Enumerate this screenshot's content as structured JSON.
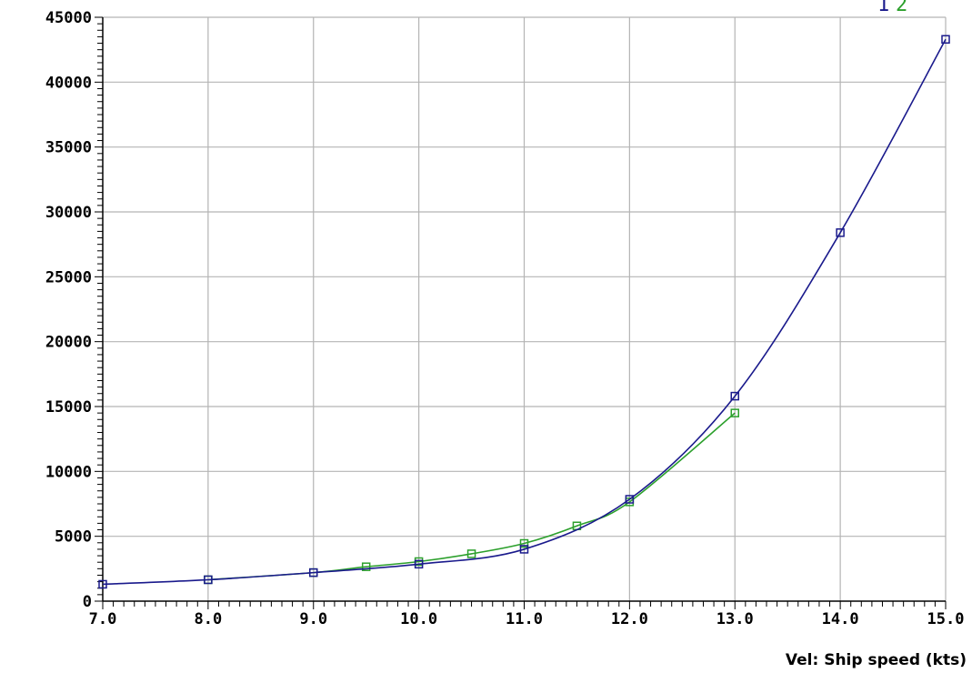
{
  "chart_data": {
    "type": "line",
    "title": "",
    "xlabel": "Vel: Ship speed (kts)",
    "ylabel": "",
    "xlim": [
      7.0,
      15.0
    ],
    "ylim": [
      0,
      45000
    ],
    "x_ticks": [
      7.0,
      8.0,
      9.0,
      10.0,
      11.0,
      12.0,
      13.0,
      14.0,
      15.0
    ],
    "x_tick_labels": [
      "7.0",
      "8.0",
      "9.0",
      "10.0",
      "11.0",
      "12.0",
      "13.0",
      "14.0",
      "15.0"
    ],
    "y_ticks": [
      0,
      5000,
      10000,
      15000,
      20000,
      25000,
      30000,
      35000,
      40000,
      45000
    ],
    "y_tick_labels": [
      "0",
      "5000",
      "10000",
      "15000",
      "20000",
      "25000",
      "30000",
      "35000",
      "40000",
      "45000"
    ],
    "grid": true,
    "legend_position": "top-right",
    "series": [
      {
        "name": "1",
        "color": "#1a1a8c",
        "x": [
          7.0,
          8.0,
          9.0,
          10.0,
          11.0,
          12.0,
          13.0,
          14.0,
          15.0
        ],
        "y": [
          1300,
          1650,
          2200,
          2850,
          4000,
          7850,
          15800,
          28400,
          43300
        ]
      },
      {
        "name": "2",
        "color": "#2ca02c",
        "x": [
          8.0,
          9.0,
          9.5,
          10.0,
          10.5,
          11.0,
          11.5,
          12.0,
          13.0
        ],
        "y": [
          1650,
          2200,
          2650,
          3050,
          3650,
          4450,
          5800,
          7650,
          14500
        ]
      }
    ]
  }
}
